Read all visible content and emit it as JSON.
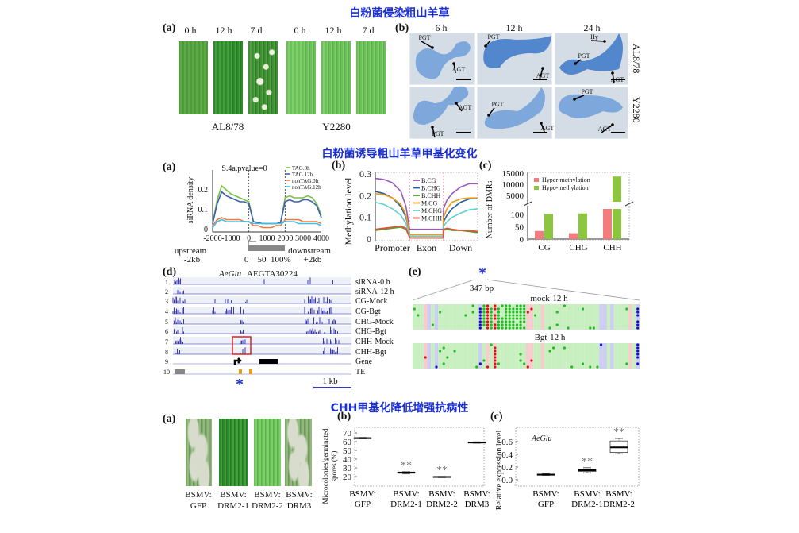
{
  "titles": {
    "section1": "白粉菌侵染粗山羊草",
    "section2": "白粉菌诱导粗山羊草甲基化变化",
    "section3": "CHH甲基化降低增强抗病性"
  },
  "fig1a": {
    "label": "(a)",
    "times": [
      "0 h",
      "12 h",
      "7 d",
      "0 h",
      "12 h",
      "7 d"
    ],
    "genotypes": [
      "AL8/78",
      "Y2280"
    ]
  },
  "fig1b": {
    "label": "(b)",
    "times": [
      "6 h",
      "12 h",
      "24 h"
    ],
    "genotypes": [
      "AL8/78",
      "Y2280"
    ],
    "annotations": {
      "r1c1_a": "PGT",
      "r1c1_b": "AGT",
      "r1c2_a": "PGT",
      "r1c2_b": "AGT",
      "r1c3_a": "Hy",
      "r1c3_b": "PGT",
      "r1c3_c": "AGT",
      "r2c1_a": "AGT",
      "r2c1_b": "PGT",
      "r2c2_a": "PGT",
      "r2c2_b": "AGT",
      "r2c3_a": "PGT",
      "r2c3_b": "AGT"
    }
  },
  "fig2a_extra": {
    "label": "(a)",
    "upstream": "upstream",
    "upstream_kb": "-2kb",
    "downstream": "downstream",
    "downstream_kb": "+2kb",
    "gene_scale": "0    50  100%"
  },
  "fig2b_label": "(b)",
  "fig2c_label": "(c)",
  "fig2d": {
    "label": "(d)",
    "gene_italic": "AeGlu",
    "gene_id": "AEGTA30224",
    "tracks": [
      {
        "num": "1",
        "label": "siRNA-0 h"
      },
      {
        "num": "2",
        "label": "siRNA-12 h"
      },
      {
        "num": "3",
        "label": "CG-Mock"
      },
      {
        "num": "4",
        "label": "CG-Bgt"
      },
      {
        "num": "5",
        "label": "CHG-Mock"
      },
      {
        "num": "6",
        "label": "CHG-Bgt"
      },
      {
        "num": "7",
        "label": "CHH-Mock"
      },
      {
        "num": "8",
        "label": "CHH-Bgt"
      },
      {
        "num": "9",
        "label": "Gene"
      },
      {
        "num": "10",
        "label": "TE"
      }
    ],
    "asterisk": "*",
    "scale": "1 kb"
  },
  "fig2e": {
    "label": "(e)",
    "asterisk": "*",
    "length": "347 bp",
    "samples": [
      "mock-12 h",
      "Bgt-12 h"
    ]
  },
  "fig3a": {
    "label": "(a)",
    "samples": [
      {
        "line1": "BSMV:",
        "line2": "GFP"
      },
      {
        "line1": "BSMV:",
        "line2": "DRM2-1"
      },
      {
        "line1": "BSMV:",
        "line2": "DRM2-2"
      },
      {
        "line1": "BSMV:",
        "line2": "DRM3"
      }
    ]
  },
  "fig3b_label": "(b)",
  "fig3c_label": "(c)",
  "colors": {
    "title_blue": "#1a2fd6",
    "TAG_0h": "#7ac143",
    "TAG_12h": "#3a5fb0",
    "nonTAG_0h": "#f07a3a",
    "nonTAG_12h": "#3cc0f0",
    "hyper": "#f47c7c",
    "hypo": "#8cc63f"
  },
  "chart_data": [
    {
      "id": "siRNA_density",
      "type": "line",
      "title": "S.4a.pvalue=0",
      "xlabel": "",
      "ylabel": "siRNA density",
      "xlim": [
        -2000,
        4000
      ],
      "ylim": [
        0,
        0.26
      ],
      "xticks": [
        "-2000",
        "-1000",
        "0",
        "1000",
        "2000",
        "3000",
        "4000"
      ],
      "yticks": [
        "0",
        "0.1",
        "0.2"
      ],
      "legend": "top-right",
      "x": [
        -2000,
        -1750,
        -1500,
        -1250,
        -1000,
        -750,
        -500,
        -250,
        0,
        250,
        500,
        750,
        1000,
        1250,
        1500,
        1750,
        2000,
        2250,
        2500,
        2750,
        3000,
        3250,
        3500,
        3750,
        4000
      ],
      "series": [
        {
          "name": "TAG.0h",
          "color": "#7ac143",
          "values": [
            0.03,
            0.15,
            0.22,
            0.2,
            0.18,
            0.17,
            0.16,
            0.15,
            0.14,
            0.04,
            0.035,
            0.03,
            0.03,
            0.03,
            0.03,
            0.035,
            0.16,
            0.17,
            0.16,
            0.16,
            0.16,
            0.17,
            0.16,
            0.13,
            0.07
          ]
        },
        {
          "name": "TAG.12h",
          "color": "#3a5fb0",
          "values": [
            0.03,
            0.13,
            0.19,
            0.17,
            0.16,
            0.15,
            0.14,
            0.14,
            0.13,
            0.04,
            0.035,
            0.03,
            0.03,
            0.03,
            0.03,
            0.035,
            0.14,
            0.15,
            0.14,
            0.14,
            0.15,
            0.15,
            0.14,
            0.12,
            0.06
          ]
        },
        {
          "name": "nonTAG.0h",
          "color": "#f07a3a",
          "values": [
            0.02,
            0.05,
            0.06,
            0.05,
            0.05,
            0.05,
            0.05,
            0.04,
            0.04,
            0.02,
            0.02,
            0.01,
            0.01,
            0.01,
            0.02,
            0.02,
            0.05,
            0.05,
            0.05,
            0.05,
            0.04,
            0.04,
            0.04,
            0.04,
            0.03
          ]
        },
        {
          "name": "nonTAG.12h",
          "color": "#3cc0f0",
          "values": [
            0.01,
            0.04,
            0.05,
            0.04,
            0.04,
            0.04,
            0.04,
            0.04,
            0.04,
            0.03,
            0.03,
            0.03,
            0.03,
            0.03,
            0.03,
            0.03,
            0.04,
            0.04,
            0.04,
            0.03,
            0.03,
            0.03,
            0.03,
            0.03,
            0.02
          ]
        }
      ]
    },
    {
      "id": "methylation_level",
      "type": "line",
      "xlabel": "",
      "ylabel": "Methylation level",
      "categories": [
        "Promoter",
        "Exon",
        "Down"
      ],
      "xlim": [
        0,
        3
      ],
      "ylim": [
        0,
        0.3
      ],
      "yticks": [
        "0",
        "0.1",
        "0.2",
        "0.3"
      ],
      "legend": "top-center",
      "x": [
        0,
        0.25,
        0.5,
        0.75,
        0.9,
        1.0,
        1.01,
        1.5,
        1.99,
        2.0,
        2.1,
        2.25,
        2.5,
        2.75,
        3.0
      ],
      "series": [
        {
          "name": "B.CG",
          "color": "#9b59b6",
          "values": [
            0.28,
            0.275,
            0.26,
            0.22,
            0.15,
            0.05,
            0.045,
            0.045,
            0.045,
            0.14,
            0.18,
            0.21,
            0.24,
            0.255,
            0.255
          ]
        },
        {
          "name": "B.CHG",
          "color": "#1f5fa8",
          "values": [
            0.22,
            0.21,
            0.19,
            0.15,
            0.1,
            0.03,
            0.02,
            0.02,
            0.02,
            0.08,
            0.11,
            0.14,
            0.17,
            0.185,
            0.19
          ]
        },
        {
          "name": "B.CHH",
          "color": "#5aa02c",
          "values": [
            0.04,
            0.045,
            0.05,
            0.055,
            0.045,
            0.01,
            0.005,
            0.005,
            0.005,
            0.04,
            0.045,
            0.04,
            0.04,
            0.035,
            0.03
          ]
        },
        {
          "name": "M.CG",
          "color": "#f39c12",
          "values": [
            0.21,
            0.205,
            0.19,
            0.16,
            0.11,
            0.03,
            0.02,
            0.02,
            0.02,
            0.1,
            0.14,
            0.17,
            0.185,
            0.19,
            0.19
          ]
        },
        {
          "name": "M.CHG",
          "color": "#5fd0d0",
          "values": [
            0.17,
            0.16,
            0.14,
            0.11,
            0.07,
            0.02,
            0.012,
            0.012,
            0.012,
            0.06,
            0.08,
            0.1,
            0.12,
            0.135,
            0.14
          ]
        },
        {
          "name": "M.CHH",
          "color": "#e74c3c",
          "values": [
            0.045,
            0.05,
            0.055,
            0.06,
            0.05,
            0.01,
            0.005,
            0.005,
            0.005,
            0.045,
            0.05,
            0.045,
            0.04,
            0.04,
            0.035
          ]
        }
      ]
    },
    {
      "id": "dmr_counts",
      "type": "bar",
      "ylabel": "Number of DMRs",
      "categories": [
        "CG",
        "CHG",
        "CHH"
      ],
      "yticks_lower": [
        "0",
        "50",
        "100"
      ],
      "yticks_upper": [
        "5000",
        "10000",
        "15000"
      ],
      "axis_break": true,
      "legend": "top-left",
      "series": [
        {
          "name": "Hyper-methylation",
          "color": "#f47c7c",
          "values": [
            33,
            24,
            2000
          ]
        },
        {
          "name": "Hypo-methylation",
          "color": "#8cc63f",
          "values": [
            102,
            104,
            13500
          ]
        }
      ]
    },
    {
      "id": "microcolonies",
      "type": "box",
      "ylabel": "Microcolonies/germinated spores (%)",
      "ylim": [
        15,
        72
      ],
      "yticks": [
        "20",
        "30",
        "40",
        "50",
        "60",
        "70"
      ],
      "categories": [
        "BSMV: GFP",
        "BSMV: DRM2-1",
        "BSMV: DRM2-2",
        "BSMV: DRM3"
      ],
      "boxes": [
        {
          "min": 63.2,
          "q1": 63.6,
          "median": 64,
          "q3": 64.4,
          "max": 64.8,
          "sig": ""
        },
        {
          "min": 23.2,
          "q1": 23.8,
          "median": 24.5,
          "q3": 25.2,
          "max": 25.6,
          "sig": "**"
        },
        {
          "min": 18.8,
          "q1": 19.2,
          "median": 19.5,
          "q3": 19.9,
          "max": 20.2,
          "sig": "**"
        },
        {
          "min": 58.2,
          "q1": 58.6,
          "median": 59,
          "q3": 59.4,
          "max": 59.8,
          "sig": ""
        }
      ]
    },
    {
      "id": "aeglu_expression",
      "type": "box",
      "annotation": "AeGlu",
      "ylabel": "Relative expression level",
      "ylim": [
        -0.03,
        0.72
      ],
      "yticks": [
        "0.0",
        "0.2",
        "0.4",
        "0.6"
      ],
      "categories": [
        "BSMV: GFP",
        "BSMV: DRM2-1",
        "BSMV: DRM2-2"
      ],
      "boxes": [
        {
          "min": 0.07,
          "q1": 0.075,
          "median": 0.08,
          "q3": 0.088,
          "max": 0.095,
          "sig": ""
        },
        {
          "min": 0.11,
          "q1": 0.13,
          "median": 0.15,
          "q3": 0.17,
          "max": 0.19,
          "sig": "**"
        },
        {
          "min": 0.41,
          "q1": 0.43,
          "median": 0.51,
          "q3": 0.61,
          "max": 0.65,
          "sig": "**"
        }
      ]
    }
  ]
}
